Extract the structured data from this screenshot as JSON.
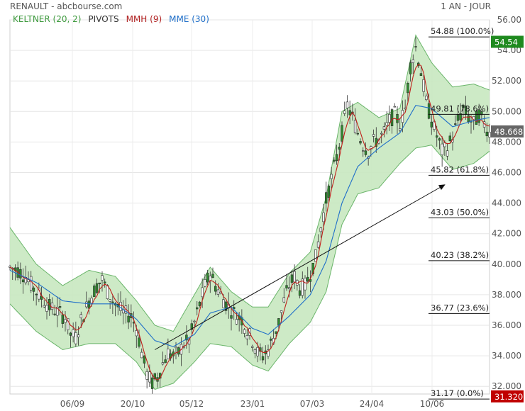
{
  "header": {
    "title": "RENAULT - abcbourse.com",
    "period": "1 AN - JOUR"
  },
  "legend": [
    {
      "label": "KELTNER (20, 2)",
      "color": "#3e9a3e"
    },
    {
      "label": "PIVOTS",
      "color": "#333333"
    },
    {
      "label": "MMH (9)",
      "color": "#b02020"
    },
    {
      "label": "MME (30)",
      "color": "#1f6fc9"
    }
  ],
  "colors": {
    "band_fill": "#c8e8c0",
    "band_line": "#6ab56a",
    "candle": "#2f8a2f",
    "mmh": "#c0201c",
    "mme": "#1f6fc9",
    "last_price_tag": "#666666",
    "high_tag": "#1f8a1f",
    "low_tag": "#c00000"
  },
  "chart_data": {
    "type": "line",
    "ylim": [
      31.5,
      56.0
    ],
    "y_ticks": [
      "32.000",
      "34.000",
      "36.000",
      "38.000",
      "40.000",
      "42.000",
      "44.000",
      "46.000",
      "48.000",
      "50.000",
      "52.000",
      "54.00",
      "56.00"
    ],
    "x_ticks": [
      "06/09",
      "20/10",
      "05/12",
      "23/01",
      "07/03",
      "24/04",
      "10/06"
    ],
    "price_path": [
      [
        0,
        39.8
      ],
      [
        3,
        39.6
      ],
      [
        6,
        39.2
      ],
      [
        9,
        38.4
      ],
      [
        12,
        37.8
      ],
      [
        15,
        37.2
      ],
      [
        18,
        36.9
      ],
      [
        21,
        36.5
      ],
      [
        23,
        35.4
      ],
      [
        25,
        35.2
      ],
      [
        27,
        36.3
      ],
      [
        30,
        37.6
      ],
      [
        33,
        38.6
      ],
      [
        35,
        39.0
      ],
      [
        37,
        38.2
      ],
      [
        39,
        37.6
      ],
      [
        41,
        37.2
      ],
      [
        43,
        36.8
      ],
      [
        46,
        36.6
      ],
      [
        48,
        35.8
      ],
      [
        50,
        34.2
      ],
      [
        52,
        32.8
      ],
      [
        54,
        32.2
      ],
      [
        56,
        32.6
      ],
      [
        58,
        33.5
      ],
      [
        60,
        34.2
      ],
      [
        62,
        34.0
      ],
      [
        64,
        34.2
      ],
      [
        66,
        34.8
      ],
      [
        68,
        35.0
      ],
      [
        70,
        36.2
      ],
      [
        72,
        37.4
      ],
      [
        74,
        38.6
      ],
      [
        76,
        39.4
      ],
      [
        78,
        38.6
      ],
      [
        80,
        38.0
      ],
      [
        82,
        37.4
      ],
      [
        84,
        37.0
      ],
      [
        86,
        36.6
      ],
      [
        88,
        36.4
      ],
      [
        90,
        35.6
      ],
      [
        92,
        35.0
      ],
      [
        94,
        34.2
      ],
      [
        96,
        34.0
      ],
      [
        98,
        34.4
      ],
      [
        100,
        35.2
      ],
      [
        102,
        36.2
      ],
      [
        104,
        37.6
      ],
      [
        106,
        38.6
      ],
      [
        108,
        39.2
      ],
      [
        110,
        38.4
      ],
      [
        112,
        38.6
      ],
      [
        114,
        39.4
      ],
      [
        116,
        40.4
      ],
      [
        118,
        42.4
      ],
      [
        120,
        44.2
      ],
      [
        122,
        45.6
      ],
      [
        124,
        47.0
      ],
      [
        126,
        48.6
      ],
      [
        128,
        50.4
      ],
      [
        130,
        49.6
      ],
      [
        132,
        48.6
      ],
      [
        134,
        47.8
      ],
      [
        136,
        47.4
      ],
      [
        138,
        48.0
      ],
      [
        140,
        48.2
      ],
      [
        142,
        48.6
      ],
      [
        144,
        49.4
      ],
      [
        146,
        49.8
      ],
      [
        148,
        49.2
      ],
      [
        150,
        50.2
      ],
      [
        152,
        53.0
      ],
      [
        154,
        54.2
      ],
      [
        156,
        52.6
      ],
      [
        158,
        50.6
      ],
      [
        160,
        49.4
      ],
      [
        162,
        48.4
      ],
      [
        164,
        47.4
      ],
      [
        166,
        47.6
      ],
      [
        168,
        48.4
      ],
      [
        170,
        49.4
      ],
      [
        172,
        50.2
      ],
      [
        174,
        49.6
      ],
      [
        176,
        49.2
      ],
      [
        178,
        49.8
      ],
      [
        180,
        49.2
      ],
      [
        182,
        48.6
      ]
    ],
    "keltner_upper": [
      [
        0,
        42.4
      ],
      [
        10,
        40.0
      ],
      [
        20,
        38.6
      ],
      [
        30,
        39.6
      ],
      [
        40,
        39.2
      ],
      [
        48,
        37.6
      ],
      [
        55,
        36.0
      ],
      [
        62,
        35.6
      ],
      [
        70,
        38.0
      ],
      [
        76,
        39.8
      ],
      [
        84,
        38.2
      ],
      [
        92,
        37.2
      ],
      [
        98,
        37.2
      ],
      [
        106,
        39.4
      ],
      [
        114,
        40.8
      ],
      [
        120,
        44.4
      ],
      [
        126,
        50.0
      ],
      [
        132,
        50.6
      ],
      [
        140,
        49.6
      ],
      [
        148,
        50.2
      ],
      [
        154,
        55.0
      ],
      [
        160,
        53.2
      ],
      [
        168,
        51.6
      ],
      [
        176,
        51.8
      ],
      [
        182,
        51.4
      ]
    ],
    "keltner_lower": [
      [
        0,
        37.4
      ],
      [
        10,
        35.6
      ],
      [
        20,
        34.4
      ],
      [
        30,
        34.8
      ],
      [
        40,
        34.8
      ],
      [
        48,
        33.6
      ],
      [
        55,
        31.8
      ],
      [
        62,
        32.2
      ],
      [
        70,
        33.6
      ],
      [
        76,
        34.8
      ],
      [
        84,
        34.6
      ],
      [
        92,
        33.4
      ],
      [
        98,
        33.0
      ],
      [
        106,
        34.8
      ],
      [
        114,
        36.2
      ],
      [
        120,
        38.2
      ],
      [
        126,
        42.6
      ],
      [
        132,
        44.6
      ],
      [
        140,
        45.0
      ],
      [
        148,
        46.6
      ],
      [
        154,
        47.6
      ],
      [
        160,
        47.8
      ],
      [
        168,
        46.2
      ],
      [
        176,
        46.6
      ],
      [
        182,
        47.4
      ]
    ],
    "mme": [
      [
        0,
        39.6
      ],
      [
        10,
        38.8
      ],
      [
        20,
        37.6
      ],
      [
        30,
        37.4
      ],
      [
        40,
        37.4
      ],
      [
        48,
        36.4
      ],
      [
        55,
        35.0
      ],
      [
        62,
        34.6
      ],
      [
        70,
        35.4
      ],
      [
        76,
        36.8
      ],
      [
        84,
        37.2
      ],
      [
        92,
        35.8
      ],
      [
        98,
        35.4
      ],
      [
        106,
        36.6
      ],
      [
        114,
        38.0
      ],
      [
        120,
        40.2
      ],
      [
        126,
        44.0
      ],
      [
        132,
        46.4
      ],
      [
        140,
        47.6
      ],
      [
        148,
        48.6
      ],
      [
        154,
        50.4
      ],
      [
        160,
        50.2
      ],
      [
        168,
        49.0
      ],
      [
        176,
        49.4
      ],
      [
        182,
        49.6
      ]
    ],
    "fibonacci": [
      {
        "level": 54.88,
        "label": "54.88  (100.0%)"
      },
      {
        "level": 49.81,
        "label": "49.81  (78.6%)"
      },
      {
        "level": 45.82,
        "label": "45.82  (61.8%)"
      },
      {
        "level": 43.03,
        "label": "43.03  (50.0%)"
      },
      {
        "level": 40.23,
        "label": "40.23  (38.2%)"
      },
      {
        "level": 36.77,
        "label": "36.77  (23.6%)"
      },
      {
        "level": 31.17,
        "label": "31.17  (0.0%)"
      }
    ],
    "trendline": {
      "from": [
        55,
        34.4
      ],
      "to": [
        165,
        45.2
      ]
    },
    "last_price": "48.668",
    "high_value": "54.54",
    "low_value": "31.320"
  }
}
